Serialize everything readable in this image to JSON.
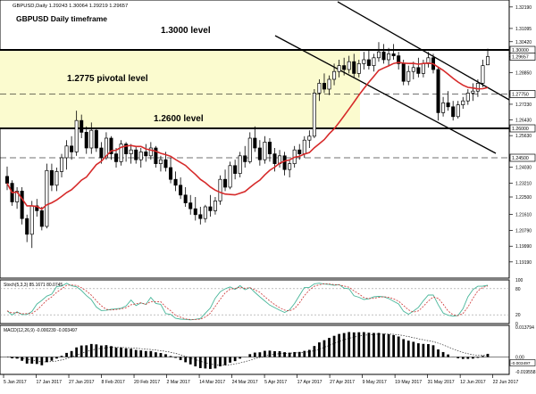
{
  "header": {
    "symbol_line": "GBPUSD,Daily  1.29243 1.30064 1.29219 1.29657",
    "title": "GBPUSD Daily timeframe"
  },
  "annotations": {
    "level_1300": "1.3000 level",
    "pivot": "1.2775 pivotal level",
    "level_1260": "1.2600 level"
  },
  "price_axis": {
    "ticks": [
      "1.32190",
      "1.31095",
      "1.30420",
      "1.29657",
      "1.28850",
      "1.27750",
      "1.27230",
      "1.26430",
      "1.25630",
      "1.24500",
      "1.24030",
      "1.23210",
      "1.22500",
      "1.21610",
      "1.20790",
      "1.19990",
      "1.19190",
      "1.18350"
    ],
    "marker_labels": [
      "1.30000",
      "1.29657",
      "1.27750",
      "1.26000",
      "1.24500"
    ]
  },
  "date_axis": {
    "labels": [
      "5 Jan 2017",
      "17 Jan 2017",
      "27 Jan 2017",
      "8 Feb 2017",
      "20 Feb 2017",
      "2 Mar 2017",
      "14 Mar 2017",
      "24 Mar 2017",
      "5 Apr 2017",
      "17 Apr 2017",
      "27 Apr 2017",
      "9 May 2017",
      "19 May 2017",
      "31 May 2017",
      "12 Jun 2017",
      "22 Jun 2017"
    ]
  },
  "stochastic": {
    "label": "Stoch(5,3,3) 85.1671 80.0745",
    "ticks": [
      "100",
      "80",
      "20",
      "0"
    ]
  },
  "macd": {
    "label": "MACD(12,26,9) -0.000239 -0.003497",
    "ticks": [
      "0.013794",
      "0.00",
      "-0.003497",
      "-0.019558"
    ]
  },
  "colors": {
    "zone": "#fbfbcf",
    "sma": "#d62a2a",
    "bull": "#ffffff",
    "bear": "#000000",
    "stoch_main": "#48b69a",
    "stoch_signal": "#cc3333"
  },
  "chart_data": {
    "type": "candlestick",
    "instrument": "GBPUSD",
    "timeframe": "Daily",
    "last_bar": {
      "open": 1.29243,
      "high": 1.30064,
      "low": 1.29219,
      "close": 1.29657
    },
    "horizontal_levels": [
      1.3,
      1.2775,
      1.26,
      1.245
    ],
    "ohlc": [
      [
        1.2355,
        1.2405,
        1.2285,
        1.232
      ],
      [
        1.232,
        1.2335,
        1.2205,
        1.2225
      ],
      [
        1.2225,
        1.23,
        1.219,
        1.228
      ],
      [
        1.228,
        1.23,
        1.211,
        1.214
      ],
      [
        1.214,
        1.216,
        1.202,
        1.206
      ],
      [
        1.206,
        1.223,
        1.199,
        1.2205
      ],
      [
        1.2205,
        1.224,
        1.215,
        1.218
      ],
      [
        1.218,
        1.22,
        1.208,
        1.21
      ],
      [
        1.21,
        1.242,
        1.209,
        1.2385
      ],
      [
        1.2385,
        1.242,
        1.228,
        1.231
      ],
      [
        1.231,
        1.24,
        1.228,
        1.238
      ],
      [
        1.238,
        1.247,
        1.235,
        1.245
      ],
      [
        1.245,
        1.254,
        1.239,
        1.251
      ],
      [
        1.251,
        1.256,
        1.244,
        1.248
      ],
      [
        1.248,
        1.269,
        1.246,
        1.264
      ],
      [
        1.264,
        1.267,
        1.255,
        1.258
      ],
      [
        1.258,
        1.261,
        1.247,
        1.25
      ],
      [
        1.25,
        1.263,
        1.247,
        1.259
      ],
      [
        1.259,
        1.26,
        1.248,
        1.25
      ],
      [
        1.25,
        1.253,
        1.242,
        1.245
      ],
      [
        1.245,
        1.258,
        1.244,
        1.255
      ],
      [
        1.255,
        1.256,
        1.244,
        1.247
      ],
      [
        1.247,
        1.25,
        1.24,
        1.243
      ],
      [
        1.243,
        1.254,
        1.241,
        1.252
      ],
      [
        1.252,
        1.253,
        1.243,
        1.247
      ],
      [
        1.247,
        1.252,
        1.242,
        1.249
      ],
      [
        1.249,
        1.251,
        1.242,
        1.244
      ],
      [
        1.244,
        1.25,
        1.24,
        1.248
      ],
      [
        1.248,
        1.252,
        1.243,
        1.246
      ],
      [
        1.246,
        1.253,
        1.244,
        1.25
      ],
      [
        1.25,
        1.251,
        1.24,
        1.242
      ],
      [
        1.242,
        1.246,
        1.238,
        1.244
      ],
      [
        1.244,
        1.248,
        1.238,
        1.24
      ],
      [
        1.24,
        1.245,
        1.232,
        1.234
      ],
      [
        1.234,
        1.238,
        1.228,
        1.231
      ],
      [
        1.231,
        1.235,
        1.224,
        1.226
      ],
      [
        1.226,
        1.23,
        1.22,
        1.222
      ],
      [
        1.222,
        1.226,
        1.216,
        1.219
      ],
      [
        1.219,
        1.225,
        1.213,
        1.216
      ],
      [
        1.216,
        1.22,
        1.211,
        1.214
      ],
      [
        1.214,
        1.221,
        1.212,
        1.22
      ],
      [
        1.22,
        1.226,
        1.215,
        1.218
      ],
      [
        1.218,
        1.225,
        1.216,
        1.223
      ],
      [
        1.223,
        1.236,
        1.221,
        1.234
      ],
      [
        1.234,
        1.239,
        1.228,
        1.23
      ],
      [
        1.23,
        1.243,
        1.229,
        1.241
      ],
      [
        1.241,
        1.244,
        1.234,
        1.237
      ],
      [
        1.237,
        1.248,
        1.235,
        1.246
      ],
      [
        1.246,
        1.251,
        1.24,
        1.243
      ],
      [
        1.243,
        1.258,
        1.242,
        1.255
      ],
      [
        1.255,
        1.261,
        1.248,
        1.25
      ],
      [
        1.25,
        1.254,
        1.241,
        1.244
      ],
      [
        1.244,
        1.256,
        1.242,
        1.253
      ],
      [
        1.253,
        1.255,
        1.243,
        1.247
      ],
      [
        1.247,
        1.25,
        1.238,
        1.242
      ],
      [
        1.242,
        1.249,
        1.24,
        1.246
      ],
      [
        1.246,
        1.248,
        1.236,
        1.239
      ],
      [
        1.239,
        1.244,
        1.235,
        1.242
      ],
      [
        1.242,
        1.251,
        1.24,
        1.249
      ],
      [
        1.249,
        1.252,
        1.244,
        1.247
      ],
      [
        1.247,
        1.256,
        1.245,
        1.254
      ],
      [
        1.254,
        1.259,
        1.25,
        1.256
      ],
      [
        1.256,
        1.28,
        1.255,
        1.278
      ],
      [
        1.278,
        1.285,
        1.274,
        1.283
      ],
      [
        1.283,
        1.288,
        1.278,
        1.28
      ],
      [
        1.28,
        1.287,
        1.277,
        1.285
      ],
      [
        1.285,
        1.293,
        1.282,
        1.289
      ],
      [
        1.289,
        1.295,
        1.286,
        1.292
      ],
      [
        1.292,
        1.296,
        1.287,
        1.29
      ],
      [
        1.29,
        1.297,
        1.288,
        1.294
      ],
      [
        1.294,
        1.298,
        1.286,
        1.288
      ],
      [
        1.288,
        1.295,
        1.286,
        1.293
      ],
      [
        1.293,
        1.299,
        1.29,
        1.295
      ],
      [
        1.295,
        1.3,
        1.29,
        1.292
      ],
      [
        1.292,
        1.298,
        1.289,
        1.296
      ],
      [
        1.296,
        1.304,
        1.294,
        1.299
      ],
      [
        1.299,
        1.303,
        1.293,
        1.295
      ],
      [
        1.295,
        1.301,
        1.292,
        1.298
      ],
      [
        1.298,
        1.303,
        1.295,
        1.297
      ],
      [
        1.297,
        1.299,
        1.29,
        1.293
      ],
      [
        1.293,
        1.295,
        1.282,
        1.284
      ],
      [
        1.284,
        1.292,
        1.282,
        1.289
      ],
      [
        1.289,
        1.294,
        1.285,
        1.291
      ],
      [
        1.291,
        1.296,
        1.286,
        1.288
      ],
      [
        1.288,
        1.295,
        1.286,
        1.293
      ],
      [
        1.293,
        1.299,
        1.291,
        1.296
      ],
      [
        1.296,
        1.298,
        1.288,
        1.29
      ],
      [
        1.29,
        1.291,
        1.264,
        1.268
      ],
      [
        1.268,
        1.276,
        1.266,
        1.273
      ],
      [
        1.273,
        1.279,
        1.269,
        1.271
      ],
      [
        1.271,
        1.274,
        1.264,
        1.266
      ],
      [
        1.266,
        1.274,
        1.265,
        1.272
      ],
      [
        1.272,
        1.276,
        1.27,
        1.274
      ],
      [
        1.274,
        1.28,
        1.272,
        1.278
      ],
      [
        1.278,
        1.283,
        1.274,
        1.279
      ],
      [
        1.279,
        1.285,
        1.276,
        1.283
      ],
      [
        1.283,
        1.295,
        1.281,
        1.292
      ],
      [
        1.2924,
        1.3006,
        1.2922,
        1.2966
      ]
    ],
    "sma_note": "moving average (red) smoothing close"
  }
}
